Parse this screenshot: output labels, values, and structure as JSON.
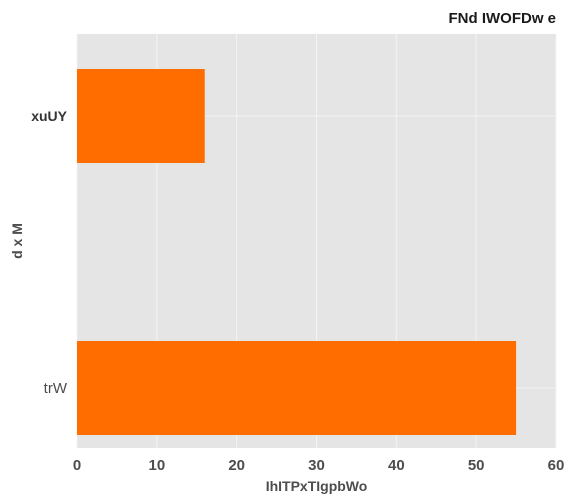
{
  "chart_data": {
    "type": "bar",
    "orientation": "horizontal",
    "title": "FNd IWOFDw e",
    "title_position": "top-right",
    "xlabel": "IhITPxTIgpbWo",
    "ylabel": "d x M",
    "categories": [
      "xuUY",
      "trW"
    ],
    "values": [
      16,
      55
    ],
    "xlim": [
      0,
      60
    ],
    "xticks": [
      0,
      10,
      20,
      30,
      40,
      50,
      60
    ],
    "grid": true,
    "legend": "none",
    "colors": {
      "bar": "#ff6d00",
      "panel": "#e5e5e5",
      "grid": "#f4f4f4"
    }
  }
}
